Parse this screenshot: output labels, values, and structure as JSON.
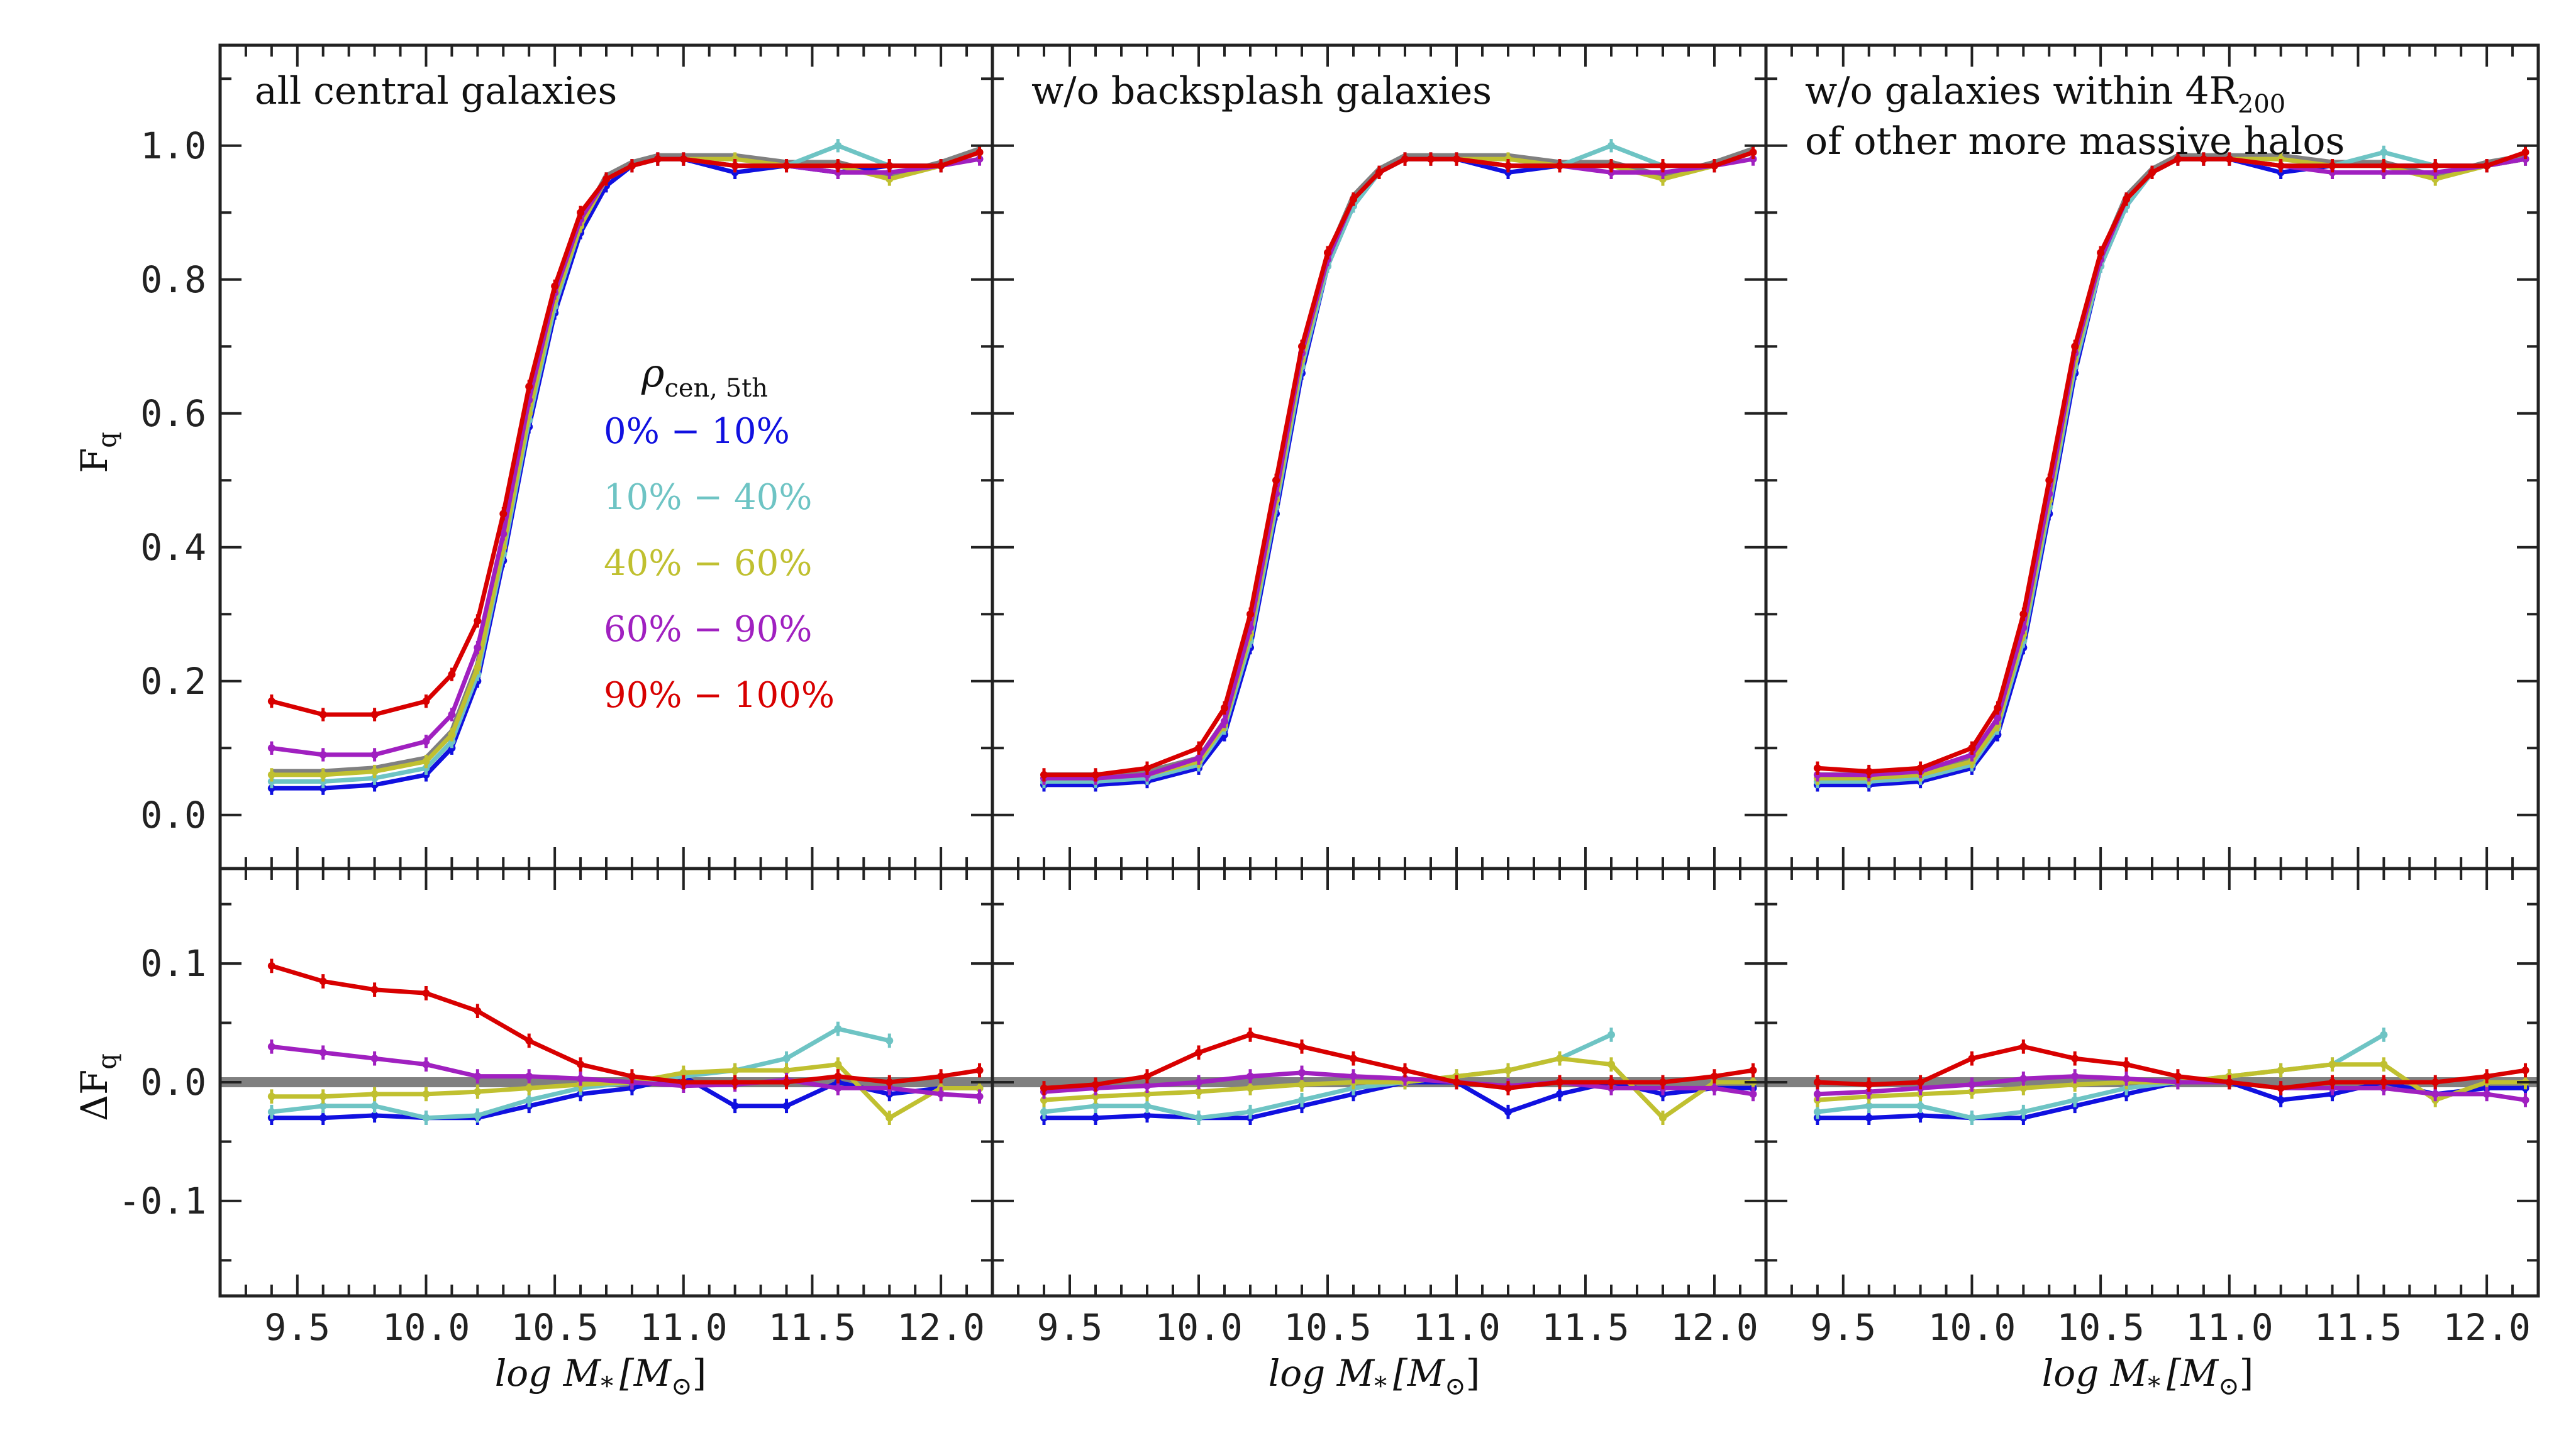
{
  "colors": {
    "blue": "#1010e0",
    "cyan": "#6ec4c4",
    "olive": "#c0c030",
    "purple": "#a020c0",
    "red": "#d80000",
    "gray": "#808080"
  },
  "legend": {
    "title": "ρ",
    "title_sub": "cen, 5th",
    "entries": [
      {
        "label": "0% − 10%",
        "color": "#1010e0"
      },
      {
        "label": "10% − 40%",
        "color": "#6ec4c4"
      },
      {
        "label": "40% − 60%",
        "color": "#c0c030"
      },
      {
        "label": "60% − 90%",
        "color": "#a020c0"
      },
      {
        "label": "90% − 100%",
        "color": "#d80000"
      }
    ]
  },
  "axes": {
    "xlabel_prefix": "log M",
    "xlabel_sub": "*",
    "xlabel_unit": "[M",
    "xlabel_unit_sub": "⊙",
    "xlabel_close": "]",
    "top_ylabel": "F",
    "top_ylabel_sub": "q",
    "bottom_ylabel": "ΔF",
    "bottom_ylabel_sub": "q",
    "x_ticks": [
      "9.5",
      "10.0",
      "10.5",
      "11.0",
      "11.5",
      "12.0"
    ],
    "top_y_ticks": [
      "0.0",
      "0.2",
      "0.4",
      "0.6",
      "0.8",
      "1.0"
    ],
    "bottom_y_ticks": [
      "-0.1",
      "0.0",
      "0.1"
    ]
  },
  "panels": [
    {
      "title_line1": "all central galaxies",
      "title_line2": "",
      "title_sub": ""
    },
    {
      "title_line1": "w/o backsplash galaxies",
      "title_line2": "",
      "title_sub": ""
    },
    {
      "title_line1": "w/o galaxies within 4R",
      "title_sub": "200",
      "title_line2": "of other more massive halos"
    }
  ],
  "chart_data": [
    {
      "type": "line",
      "panel": 0,
      "row": "top",
      "xlim": [
        9.2,
        12.2
      ],
      "ylim": [
        -0.08,
        1.15
      ],
      "x": [
        9.4,
        9.6,
        9.8,
        10.0,
        10.1,
        10.2,
        10.3,
        10.4,
        10.5,
        10.6,
        10.7,
        10.8,
        10.9,
        11.0,
        11.2,
        11.4,
        11.6,
        11.8,
        12.0,
        12.15
      ],
      "series": [
        {
          "name": "0% − 10%",
          "color": "blue",
          "values": [
            0.04,
            0.04,
            0.045,
            0.06,
            0.1,
            0.2,
            0.38,
            0.58,
            0.75,
            0.87,
            0.94,
            0.97,
            0.98,
            0.98,
            0.96,
            0.97,
            0.96,
            0.97,
            0.97,
            0.99
          ]
        },
        {
          "name": "10% − 40%",
          "color": "cyan",
          "values": [
            0.05,
            0.05,
            0.055,
            0.07,
            0.11,
            0.21,
            0.39,
            0.59,
            0.76,
            0.88,
            0.95,
            0.97,
            0.98,
            0.98,
            0.97,
            0.97,
            1.0,
            0.97,
            0.97,
            0.99
          ]
        },
        {
          "name": "40% − 60%",
          "color": "olive",
          "values": [
            0.06,
            0.06,
            0.065,
            0.08,
            0.12,
            0.22,
            0.4,
            0.6,
            0.77,
            0.88,
            0.95,
            0.97,
            0.98,
            0.98,
            0.98,
            0.97,
            0.97,
            0.95,
            0.97,
            0.99
          ]
        },
        {
          "name": "60% − 90%",
          "color": "purple",
          "values": [
            0.1,
            0.09,
            0.09,
            0.11,
            0.15,
            0.25,
            0.42,
            0.62,
            0.78,
            0.89,
            0.95,
            0.97,
            0.98,
            0.98,
            0.97,
            0.97,
            0.96,
            0.96,
            0.97,
            0.98
          ]
        },
        {
          "name": "90% − 100%",
          "color": "red",
          "values": [
            0.17,
            0.15,
            0.15,
            0.17,
            0.21,
            0.29,
            0.45,
            0.64,
            0.79,
            0.9,
            0.95,
            0.97,
            0.98,
            0.98,
            0.97,
            0.97,
            0.97,
            0.97,
            0.97,
            0.99
          ]
        }
      ]
    },
    {
      "type": "line",
      "panel": 1,
      "row": "top",
      "xlim": [
        9.2,
        12.2
      ],
      "ylim": [
        -0.08,
        1.15
      ],
      "x": [
        9.4,
        9.6,
        9.8,
        10.0,
        10.1,
        10.2,
        10.3,
        10.4,
        10.5,
        10.6,
        10.7,
        10.8,
        10.9,
        11.0,
        11.2,
        11.4,
        11.6,
        11.8,
        12.0,
        12.15
      ],
      "series": [
        {
          "name": "0% − 10%",
          "color": "blue",
          "values": [
            0.045,
            0.045,
            0.05,
            0.07,
            0.12,
            0.25,
            0.45,
            0.66,
            0.82,
            0.91,
            0.96,
            0.98,
            0.98,
            0.98,
            0.96,
            0.97,
            0.97,
            0.97,
            0.97,
            0.99
          ]
        },
        {
          "name": "10% − 40%",
          "color": "cyan",
          "values": [
            0.05,
            0.05,
            0.055,
            0.075,
            0.13,
            0.26,
            0.46,
            0.67,
            0.82,
            0.91,
            0.96,
            0.98,
            0.98,
            0.98,
            0.97,
            0.97,
            1.0,
            0.97,
            0.97,
            0.99
          ]
        },
        {
          "name": "40% − 60%",
          "color": "olive",
          "values": [
            0.055,
            0.055,
            0.06,
            0.08,
            0.135,
            0.27,
            0.47,
            0.68,
            0.83,
            0.92,
            0.96,
            0.98,
            0.98,
            0.98,
            0.98,
            0.97,
            0.97,
            0.95,
            0.97,
            0.99
          ]
        },
        {
          "name": "60% − 90%",
          "color": "purple",
          "values": [
            0.055,
            0.055,
            0.06,
            0.085,
            0.14,
            0.28,
            0.48,
            0.69,
            0.83,
            0.92,
            0.96,
            0.98,
            0.98,
            0.98,
            0.97,
            0.97,
            0.96,
            0.96,
            0.97,
            0.98
          ]
        },
        {
          "name": "90% − 100%",
          "color": "red",
          "values": [
            0.06,
            0.06,
            0.07,
            0.1,
            0.16,
            0.3,
            0.5,
            0.7,
            0.84,
            0.92,
            0.96,
            0.98,
            0.98,
            0.98,
            0.97,
            0.97,
            0.97,
            0.97,
            0.97,
            0.99
          ]
        }
      ]
    },
    {
      "type": "line",
      "panel": 2,
      "row": "top",
      "xlim": [
        9.2,
        12.2
      ],
      "ylim": [
        -0.08,
        1.15
      ],
      "x": [
        9.4,
        9.6,
        9.8,
        10.0,
        10.1,
        10.2,
        10.3,
        10.4,
        10.5,
        10.6,
        10.7,
        10.8,
        10.9,
        11.0,
        11.2,
        11.4,
        11.6,
        11.8,
        12.0,
        12.15
      ],
      "series": [
        {
          "name": "0% − 10%",
          "color": "blue",
          "values": [
            0.045,
            0.045,
            0.05,
            0.07,
            0.12,
            0.25,
            0.45,
            0.66,
            0.82,
            0.91,
            0.96,
            0.98,
            0.98,
            0.98,
            0.96,
            0.97,
            0.97,
            0.97,
            0.97,
            0.98
          ]
        },
        {
          "name": "10% − 40%",
          "color": "cyan",
          "values": [
            0.05,
            0.05,
            0.055,
            0.075,
            0.13,
            0.26,
            0.46,
            0.67,
            0.82,
            0.91,
            0.96,
            0.98,
            0.98,
            0.98,
            0.97,
            0.97,
            0.99,
            0.97,
            0.97,
            0.98
          ]
        },
        {
          "name": "40% − 60%",
          "color": "olive",
          "values": [
            0.055,
            0.055,
            0.06,
            0.08,
            0.135,
            0.27,
            0.47,
            0.68,
            0.83,
            0.92,
            0.96,
            0.98,
            0.98,
            0.98,
            0.98,
            0.97,
            0.97,
            0.95,
            0.97,
            0.98
          ]
        },
        {
          "name": "60% − 90%",
          "color": "purple",
          "values": [
            0.06,
            0.06,
            0.065,
            0.09,
            0.145,
            0.28,
            0.48,
            0.69,
            0.83,
            0.92,
            0.96,
            0.98,
            0.98,
            0.98,
            0.97,
            0.96,
            0.96,
            0.96,
            0.97,
            0.98
          ]
        },
        {
          "name": "90% − 100%",
          "color": "red",
          "values": [
            0.07,
            0.065,
            0.07,
            0.1,
            0.16,
            0.3,
            0.5,
            0.7,
            0.84,
            0.92,
            0.96,
            0.98,
            0.98,
            0.98,
            0.97,
            0.97,
            0.97,
            0.97,
            0.97,
            0.99
          ]
        }
      ]
    },
    {
      "type": "line",
      "panel": 0,
      "row": "bottom",
      "xlim": [
        9.2,
        12.2
      ],
      "ylim": [
        -0.18,
        0.18
      ],
      "x": [
        9.4,
        9.6,
        9.8,
        10.0,
        10.2,
        10.4,
        10.6,
        10.8,
        11.0,
        11.2,
        11.4,
        11.6,
        11.8,
        12.0,
        12.15
      ],
      "series": [
        {
          "name": "0% − 10%",
          "color": "blue",
          "values": [
            -0.03,
            -0.03,
            -0.028,
            -0.03,
            -0.03,
            -0.02,
            -0.01,
            -0.005,
            0.005,
            -0.02,
            -0.02,
            0.0,
            -0.01,
            -0.005,
            -0.005
          ]
        },
        {
          "name": "10% − 40%",
          "color": "cyan",
          "values": [
            -0.025,
            -0.02,
            -0.02,
            -0.03,
            -0.028,
            -0.015,
            -0.005,
            0.0,
            0.005,
            0.01,
            0.02,
            0.045,
            0.035,
            null,
            null
          ]
        },
        {
          "name": "40% − 60%",
          "color": "olive",
          "values": [
            -0.012,
            -0.012,
            -0.01,
            -0.01,
            -0.008,
            -0.005,
            -0.002,
            0.0,
            0.008,
            0.01,
            0.01,
            0.015,
            -0.03,
            -0.005,
            -0.005
          ]
        },
        {
          "name": "60% − 90%",
          "color": "purple",
          "values": [
            0.03,
            0.025,
            0.02,
            0.015,
            0.005,
            0.005,
            0.003,
            0.0,
            -0.003,
            -0.002,
            0.002,
            -0.005,
            -0.005,
            -0.01,
            -0.012
          ]
        },
        {
          "name": "90% − 100%",
          "color": "red",
          "values": [
            0.098,
            0.085,
            0.078,
            0.075,
            0.06,
            0.035,
            0.015,
            0.005,
            0.0,
            0.0,
            0.0,
            0.005,
            0.0,
            0.005,
            0.01
          ]
        }
      ]
    },
    {
      "type": "line",
      "panel": 1,
      "row": "bottom",
      "xlim": [
        9.2,
        12.2
      ],
      "ylim": [
        -0.18,
        0.18
      ],
      "x": [
        9.4,
        9.6,
        9.8,
        10.0,
        10.2,
        10.4,
        10.6,
        10.8,
        11.0,
        11.2,
        11.4,
        11.6,
        11.8,
        12.0,
        12.15
      ],
      "series": [
        {
          "name": "0% − 10%",
          "color": "blue",
          "values": [
            -0.03,
            -0.03,
            -0.028,
            -0.03,
            -0.03,
            -0.02,
            -0.01,
            0.0,
            0.0,
            -0.025,
            -0.01,
            0.0,
            -0.01,
            -0.005,
            -0.005
          ]
        },
        {
          "name": "10% − 40%",
          "color": "cyan",
          "values": [
            -0.025,
            -0.02,
            -0.02,
            -0.03,
            -0.025,
            -0.015,
            -0.005,
            0.0,
            0.005,
            0.01,
            0.02,
            0.04,
            null,
            null,
            null
          ]
        },
        {
          "name": "40% − 60%",
          "color": "olive",
          "values": [
            -0.015,
            -0.012,
            -0.01,
            -0.008,
            -0.005,
            -0.002,
            0.0,
            0.0,
            0.005,
            0.01,
            0.02,
            0.015,
            -0.03,
            0.0,
            0.0
          ]
        },
        {
          "name": "60% − 90%",
          "color": "purple",
          "values": [
            -0.008,
            -0.005,
            -0.003,
            0.0,
            0.005,
            0.008,
            0.005,
            0.003,
            0.0,
            -0.003,
            0.0,
            -0.005,
            -0.005,
            -0.005,
            -0.01
          ]
        },
        {
          "name": "90% − 100%",
          "color": "red",
          "values": [
            -0.005,
            -0.002,
            0.005,
            0.025,
            0.04,
            0.03,
            0.02,
            0.01,
            0.0,
            -0.005,
            0.0,
            0.0,
            0.0,
            0.005,
            0.01
          ]
        }
      ]
    },
    {
      "type": "line",
      "panel": 2,
      "row": "bottom",
      "xlim": [
        9.2,
        12.2
      ],
      "ylim": [
        -0.18,
        0.18
      ],
      "x": [
        9.4,
        9.6,
        9.8,
        10.0,
        10.2,
        10.4,
        10.6,
        10.8,
        11.0,
        11.2,
        11.4,
        11.6,
        11.8,
        12.0,
        12.15
      ],
      "series": [
        {
          "name": "0% − 10%",
          "color": "blue",
          "values": [
            -0.03,
            -0.03,
            -0.028,
            -0.03,
            -0.03,
            -0.02,
            -0.01,
            0.0,
            0.0,
            -0.015,
            -0.01,
            0.0,
            -0.01,
            -0.005,
            -0.005
          ]
        },
        {
          "name": "10% − 40%",
          "color": "cyan",
          "values": [
            -0.025,
            -0.02,
            -0.02,
            -0.03,
            -0.025,
            -0.015,
            -0.005,
            0.0,
            0.005,
            0.01,
            0.015,
            0.04,
            null,
            null,
            null
          ]
        },
        {
          "name": "40% − 60%",
          "color": "olive",
          "values": [
            -0.015,
            -0.012,
            -0.01,
            -0.008,
            -0.005,
            -0.002,
            0.0,
            0.0,
            0.005,
            0.01,
            0.015,
            0.015,
            -0.015,
            0.0,
            0.0
          ]
        },
        {
          "name": "60% − 90%",
          "color": "purple",
          "values": [
            -0.01,
            -0.008,
            -0.005,
            -0.002,
            0.003,
            0.005,
            0.003,
            0.0,
            0.0,
            -0.005,
            -0.005,
            -0.005,
            -0.01,
            -0.01,
            -0.015
          ]
        },
        {
          "name": "90% − 100%",
          "color": "red",
          "values": [
            0.0,
            -0.002,
            0.0,
            0.02,
            0.03,
            0.02,
            0.015,
            0.005,
            0.0,
            -0.005,
            0.0,
            0.0,
            0.0,
            0.005,
            0.01
          ]
        }
      ]
    }
  ]
}
